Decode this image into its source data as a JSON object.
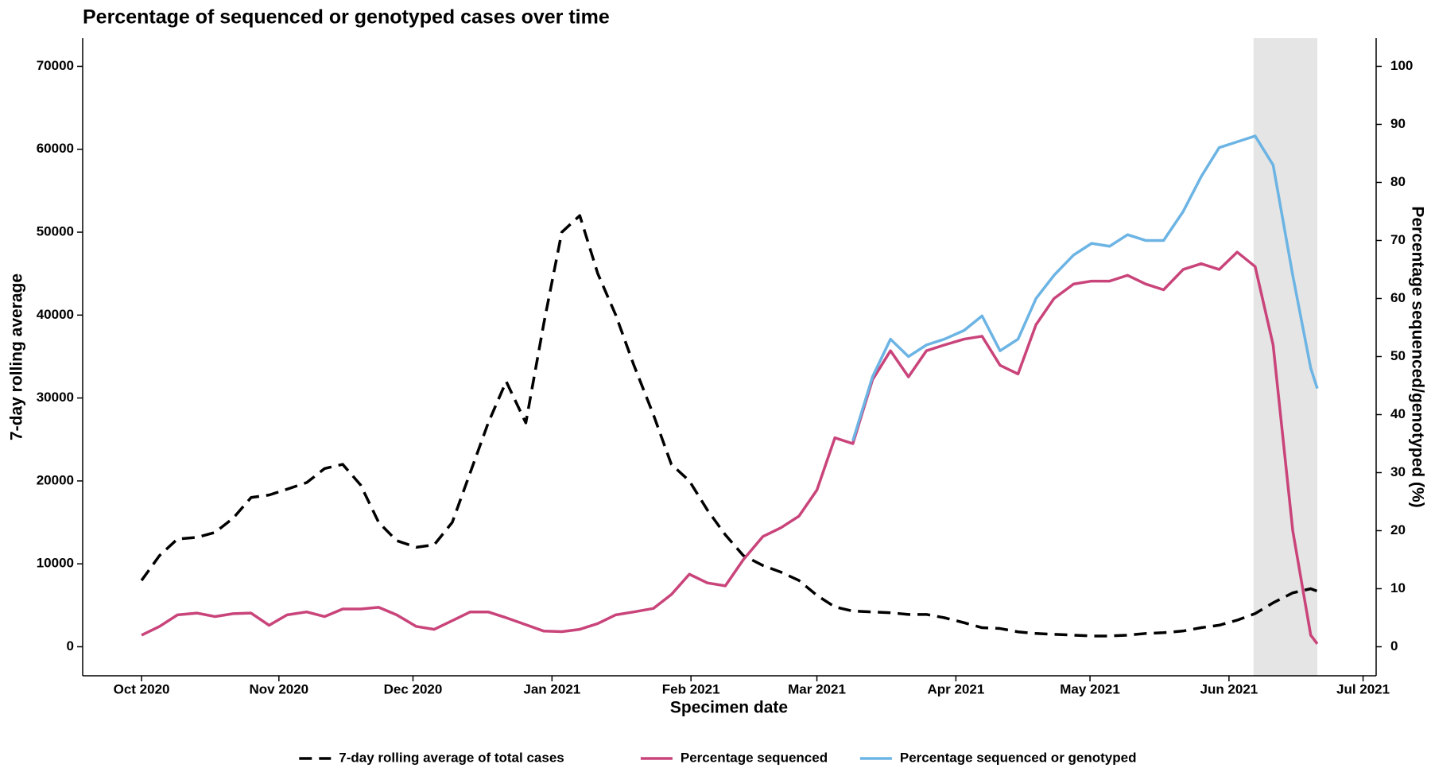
{
  "chart_data": {
    "type": "line",
    "title": "Percentage of sequenced or genotyped cases over time",
    "x_label": "Specimen date",
    "y_label": "7-day rolling average",
    "y2_label": "Percentage sequenced/genotyped (%)",
    "x": [
      2020.749,
      2020.76,
      2020.771,
      2020.783,
      2020.794,
      2020.805,
      2020.816,
      2020.827,
      2020.838,
      2020.85,
      2020.861,
      2020.872,
      2020.883,
      2020.894,
      2020.905,
      2020.917,
      2020.928,
      2020.939,
      2020.95,
      2020.961,
      2020.972,
      2020.984,
      2020.995,
      2021.006,
      2021.017,
      2021.028,
      2021.039,
      2021.05,
      2021.062,
      2021.073,
      2021.084,
      2021.095,
      2021.106,
      2021.117,
      2021.129,
      2021.14,
      2021.151,
      2021.162,
      2021.173,
      2021.184,
      2021.196,
      2021.207,
      2021.218,
      2021.229,
      2021.24,
      2021.252,
      2021.263,
      2021.274,
      2021.285,
      2021.296,
      2021.307,
      2021.319,
      2021.33,
      2021.341,
      2021.352,
      2021.363,
      2021.374,
      2021.386,
      2021.397,
      2021.408,
      2021.419,
      2021.43,
      2021.441,
      2021.453,
      2021.464,
      2021.468
    ],
    "series": [
      {
        "name": "7-day rolling average of total cases",
        "color": "#000000",
        "style": "dashed",
        "axis": "y",
        "values": [
          8000,
          11000,
          13000,
          13200,
          13800,
          15500,
          18000,
          18300,
          19000,
          19800,
          21500,
          22000,
          19500,
          15000,
          12800,
          12000,
          12300,
          15000,
          21000,
          27000,
          32000,
          27000,
          39000,
          50000,
          52000,
          45000,
          40000,
          34000,
          28000,
          22000,
          20000,
          16500,
          13500,
          11000,
          9800,
          9000,
          8000,
          6200,
          4800,
          4300,
          4200,
          4100,
          3900,
          3900,
          3500,
          2900,
          2300,
          2200,
          1800,
          1600,
          1500,
          1400,
          1300,
          1300,
          1400,
          1600,
          1700,
          1900,
          2300,
          2600,
          3200,
          4000,
          5300,
          6500,
          7000,
          6700
        ]
      },
      {
        "name": "Percentage sequenced",
        "color": "#c9447a",
        "style": "solid",
        "axis": "y2",
        "values": [
          2,
          3.5,
          5.5,
          5.8,
          5.2,
          5.7,
          5.8,
          3.7,
          5.5,
          6,
          5.2,
          6.5,
          6.5,
          6.8,
          5.5,
          3.5,
          3,
          4.5,
          6,
          6,
          5,
          3.8,
          2.7,
          2.6,
          3,
          4,
          5.5,
          6,
          6.6,
          9,
          12.5,
          11,
          10.5,
          15,
          19,
          20.5,
          22.5,
          27,
          36,
          35,
          46,
          51,
          46.5,
          51,
          52,
          53,
          53.5,
          48.5,
          47,
          55.5,
          60,
          62.5,
          63,
          63,
          64,
          62.5,
          61.5,
          65,
          66,
          65,
          68,
          65.5,
          52,
          20,
          2,
          0.5
        ]
      },
      {
        "name": "Percentage sequenced or genotyped",
        "color": "#6cb4e4",
        "style": "solid",
        "axis": "y2",
        "values": [
          null,
          null,
          null,
          null,
          null,
          null,
          null,
          null,
          null,
          null,
          null,
          null,
          null,
          null,
          null,
          null,
          null,
          null,
          null,
          null,
          null,
          null,
          null,
          null,
          null,
          null,
          null,
          null,
          null,
          null,
          null,
          null,
          null,
          null,
          null,
          null,
          null,
          null,
          null,
          35.5,
          46.5,
          53,
          50,
          52,
          53,
          54.5,
          57,
          51,
          53,
          60,
          64,
          67.5,
          69.5,
          69,
          71,
          70,
          70,
          75,
          81,
          86,
          87,
          88,
          83,
          64,
          48,
          44.5
        ]
      }
    ],
    "shaded_region": {
      "x": [
        2021.429,
        2021.468
      ],
      "color": "#e5e5e5"
    },
    "xlim": [
      2020.713,
      2021.504
    ],
    "xticks": [
      {
        "value": 2020.749,
        "label": "Oct 2020"
      },
      {
        "value": 2020.833,
        "label": "Nov 2020"
      },
      {
        "value": 2020.915,
        "label": "Dec 2020"
      },
      {
        "value": 2021.0,
        "label": "Jan 2021"
      },
      {
        "value": 2021.085,
        "label": "Feb 2021"
      },
      {
        "value": 2021.162,
        "label": "Mar 2021"
      },
      {
        "value": 2021.247,
        "label": "Apr 2021"
      },
      {
        "value": 2021.329,
        "label": "May 2021"
      },
      {
        "value": 2021.414,
        "label": "Jun 2021"
      },
      {
        "value": 2021.496,
        "label": "Jul 2021"
      }
    ],
    "ylim": [
      -3500,
      73400
    ],
    "yticks": [
      0,
      10000,
      20000,
      30000,
      40000,
      50000,
      60000,
      70000
    ],
    "y2lim": [
      -5,
      104.857
    ],
    "y2ticks": [
      0,
      10,
      20,
      30,
      40,
      50,
      60,
      70,
      80,
      90,
      100
    ],
    "grid": false,
    "legend": "bottom"
  }
}
